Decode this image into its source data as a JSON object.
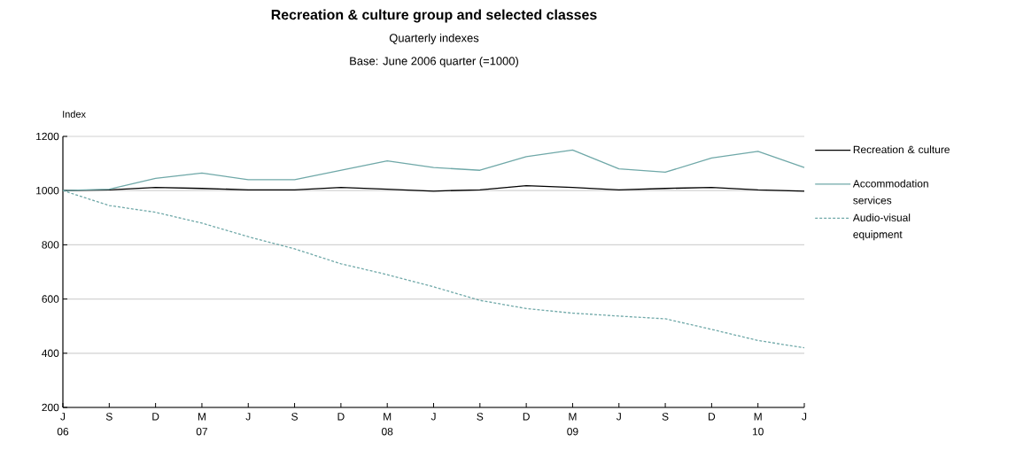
{
  "chart_data": {
    "type": "line",
    "title": "Recreation & culture group and selected classes",
    "subtitle": "Quarterly indexes",
    "annotations": [
      "Base: June 2006 quarter (=1000)"
    ],
    "ylabel": "Index",
    "categories": [
      "J 06",
      "S",
      "D",
      "M 07",
      "J",
      "S",
      "D",
      "M 08",
      "J",
      "S",
      "D",
      "M 09",
      "J",
      "S",
      "D",
      "M 10",
      "J"
    ],
    "series": [
      {
        "name": "Recreation & culture",
        "color": "#000000",
        "line_style": "solid",
        "values": [
          1000,
          1003,
          1012,
          1008,
          1003,
          1003,
          1012,
          1005,
          998,
          1003,
          1018,
          1012,
          1003,
          1008,
          1012,
          1003,
          998
        ]
      },
      {
        "name": "Accommodation services",
        "color": "#6fa8a8",
        "line_style": "solid",
        "values": [
          1000,
          1005,
          1045,
          1065,
          1040,
          1040,
          1075,
          1110,
          1085,
          1075,
          1125,
          1150,
          1080,
          1068,
          1120,
          1145,
          1085
        ]
      },
      {
        "name": "Audio-visual equipment",
        "color": "#6fa8a8",
        "line_style": "dashed",
        "values": [
          1000,
          945,
          920,
          880,
          830,
          785,
          730,
          690,
          645,
          595,
          565,
          548,
          537,
          527,
          488,
          447,
          420
        ]
      }
    ],
    "ylim": [
      200,
      1200
    ],
    "yticks": [
      200,
      400,
      600,
      800,
      1000,
      1200
    ],
    "grid": "y",
    "legend": "right",
    "marker": "none"
  }
}
